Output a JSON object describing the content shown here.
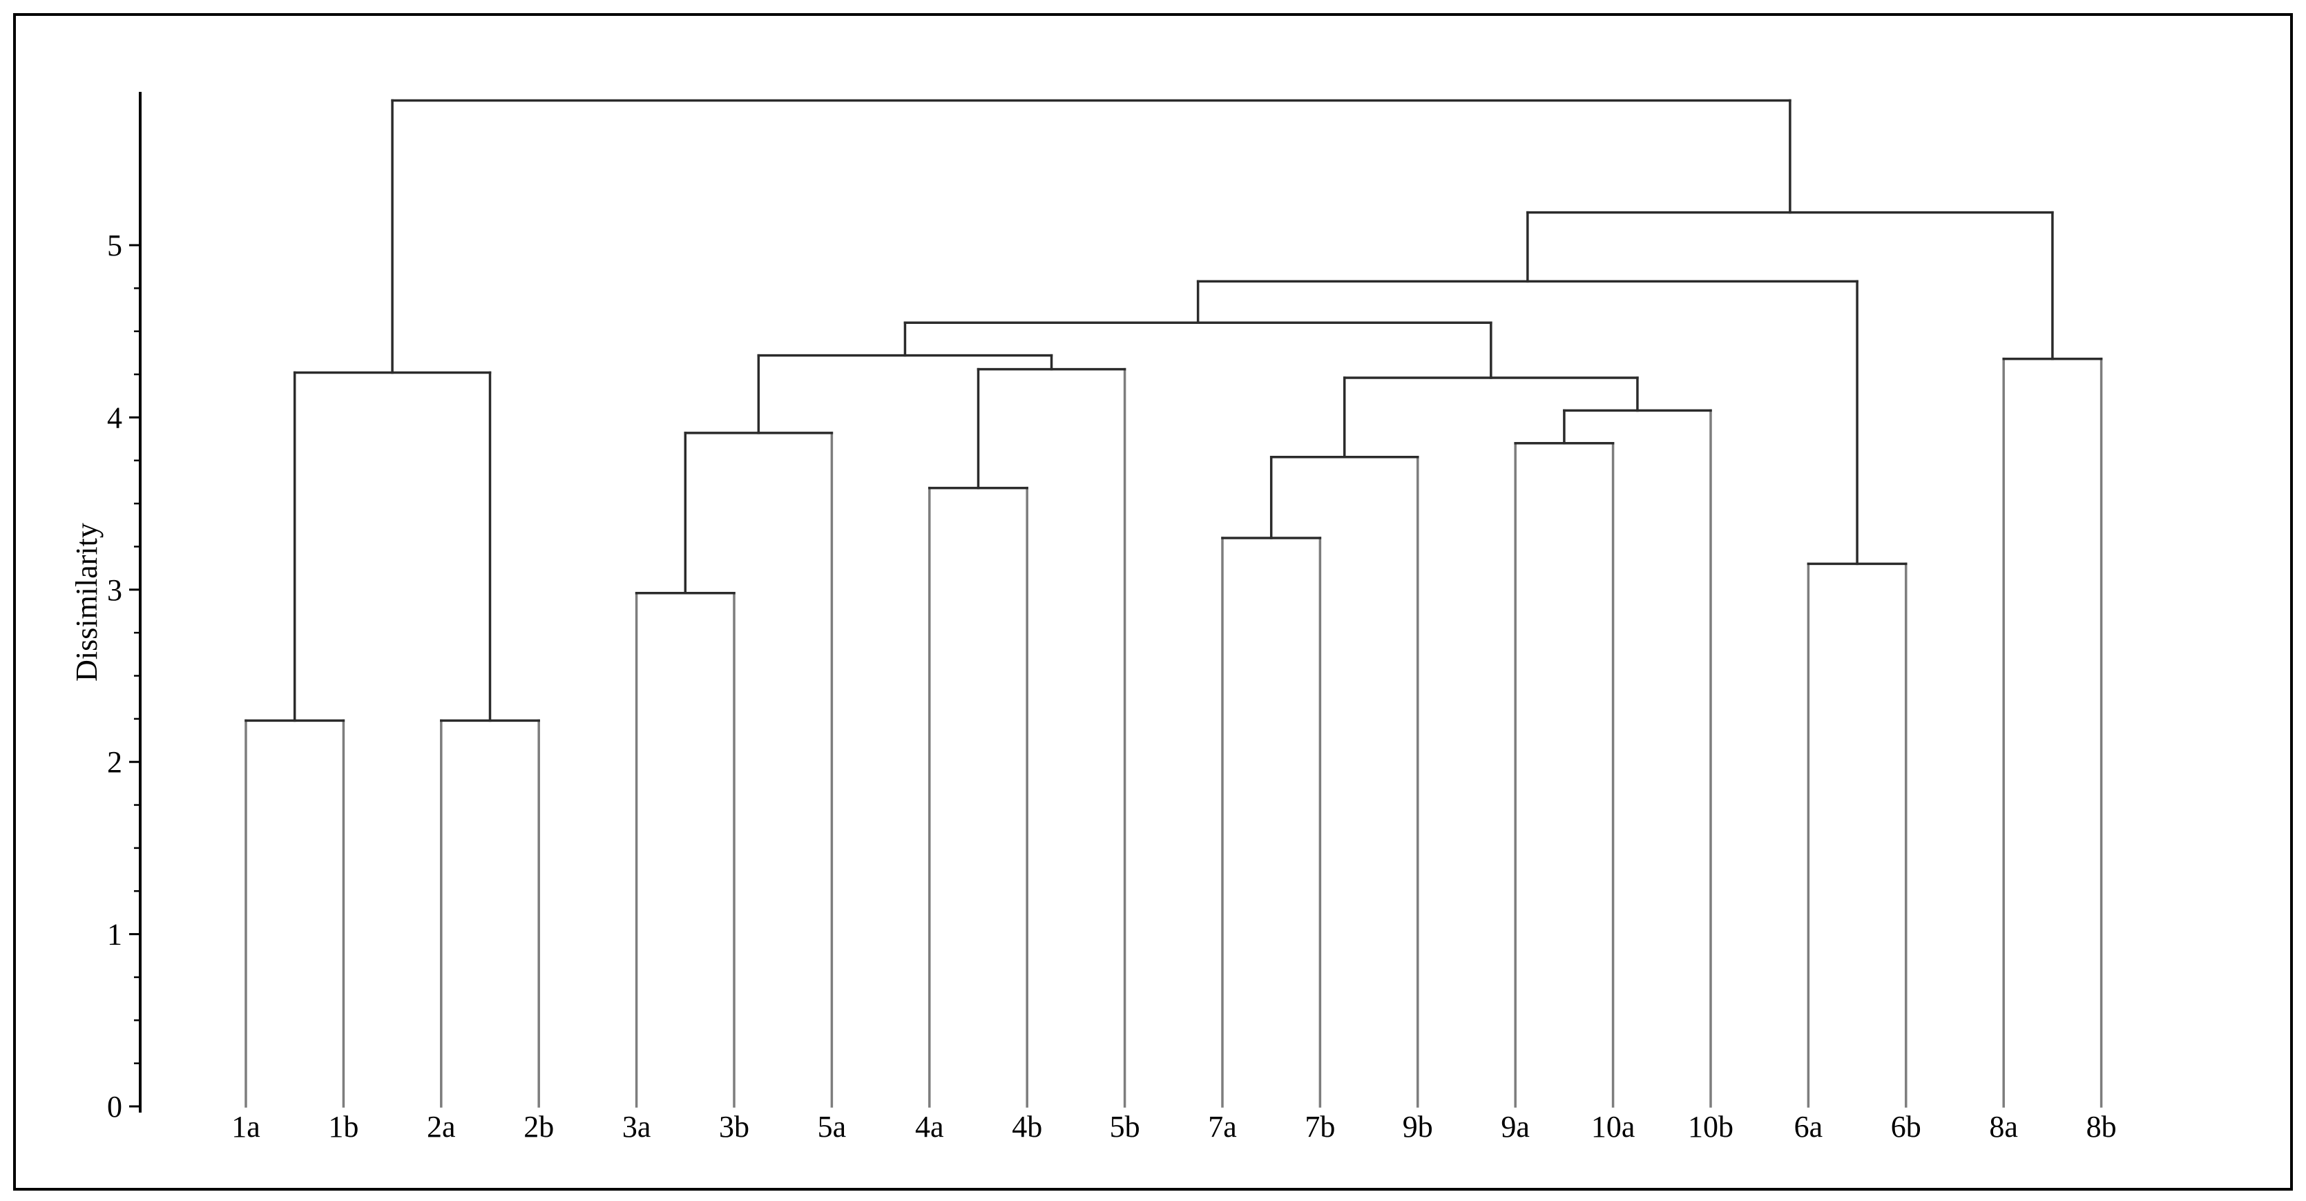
{
  "figure": {
    "background": "#ffffff",
    "border_color": "#000000",
    "branch_color": "#2b2b2b",
    "leaf_line_color": "#7d7d7d",
    "axis_color": "#000000",
    "text_color": "#000000"
  },
  "chart_data": {
    "type": "dendrogram",
    "orientation": "vertical",
    "title": "",
    "xlabel": "",
    "ylabel": "Dissimilarity",
    "ylim": [
      0,
      5.9
    ],
    "yticks": [
      0,
      1,
      2,
      3,
      4,
      5
    ],
    "ytick_labels": [
      "0",
      "1",
      "2",
      "3",
      "4",
      "5"
    ],
    "minor_tick_step": 0.25,
    "minor_tick_range": [
      0.25,
      4.75
    ],
    "grid": "off",
    "legend": "none",
    "leaves": [
      "1a",
      "1b",
      "2a",
      "2b",
      "3a",
      "3b",
      "5a",
      "4a",
      "4b",
      "5b",
      "7a",
      "7b",
      "9b",
      "9a",
      "10a",
      "10b",
      "6a",
      "6b",
      "8a",
      "8b"
    ],
    "merges": [
      {
        "id": "n1",
        "left": "1a",
        "right": "1b",
        "height": 2.24
      },
      {
        "id": "n2",
        "left": "2a",
        "right": "2b",
        "height": 2.24
      },
      {
        "id": "n3",
        "left": "3a",
        "right": "3b",
        "height": 2.98
      },
      {
        "id": "n4",
        "left": "4a",
        "right": "4b",
        "height": 3.59
      },
      {
        "id": "n5",
        "left": "7a",
        "right": "7b",
        "height": 3.3
      },
      {
        "id": "n6",
        "left": "9a",
        "right": "10a",
        "height": 3.85
      },
      {
        "id": "n7",
        "left": "6a",
        "right": "6b",
        "height": 3.15
      },
      {
        "id": "n8",
        "left": "8a",
        "right": "8b",
        "height": 4.34
      },
      {
        "id": "n9",
        "left": "n3",
        "right": "5a",
        "height": 3.91
      },
      {
        "id": "n10",
        "left": "n4",
        "right": "5b",
        "height": 4.28
      },
      {
        "id": "n11",
        "left": "n5",
        "right": "9b",
        "height": 3.77
      },
      {
        "id": "n12",
        "left": "n6",
        "right": "10b",
        "height": 4.04
      },
      {
        "id": "n13",
        "left": "n1",
        "right": "n2",
        "height": 4.26
      },
      {
        "id": "n14",
        "left": "n9",
        "right": "n10",
        "height": 4.36
      },
      {
        "id": "n15",
        "left": "n11",
        "right": "n12",
        "height": 4.23
      },
      {
        "id": "n16",
        "left": "n14",
        "right": "n15",
        "height": 4.55
      },
      {
        "id": "n17",
        "left": "n16",
        "right": "n7",
        "height": 4.79
      },
      {
        "id": "n18",
        "left": "n17",
        "right": "n8",
        "height": 5.19
      },
      {
        "id": "root",
        "left": "n13",
        "right": "n18",
        "height": 5.84
      }
    ]
  }
}
